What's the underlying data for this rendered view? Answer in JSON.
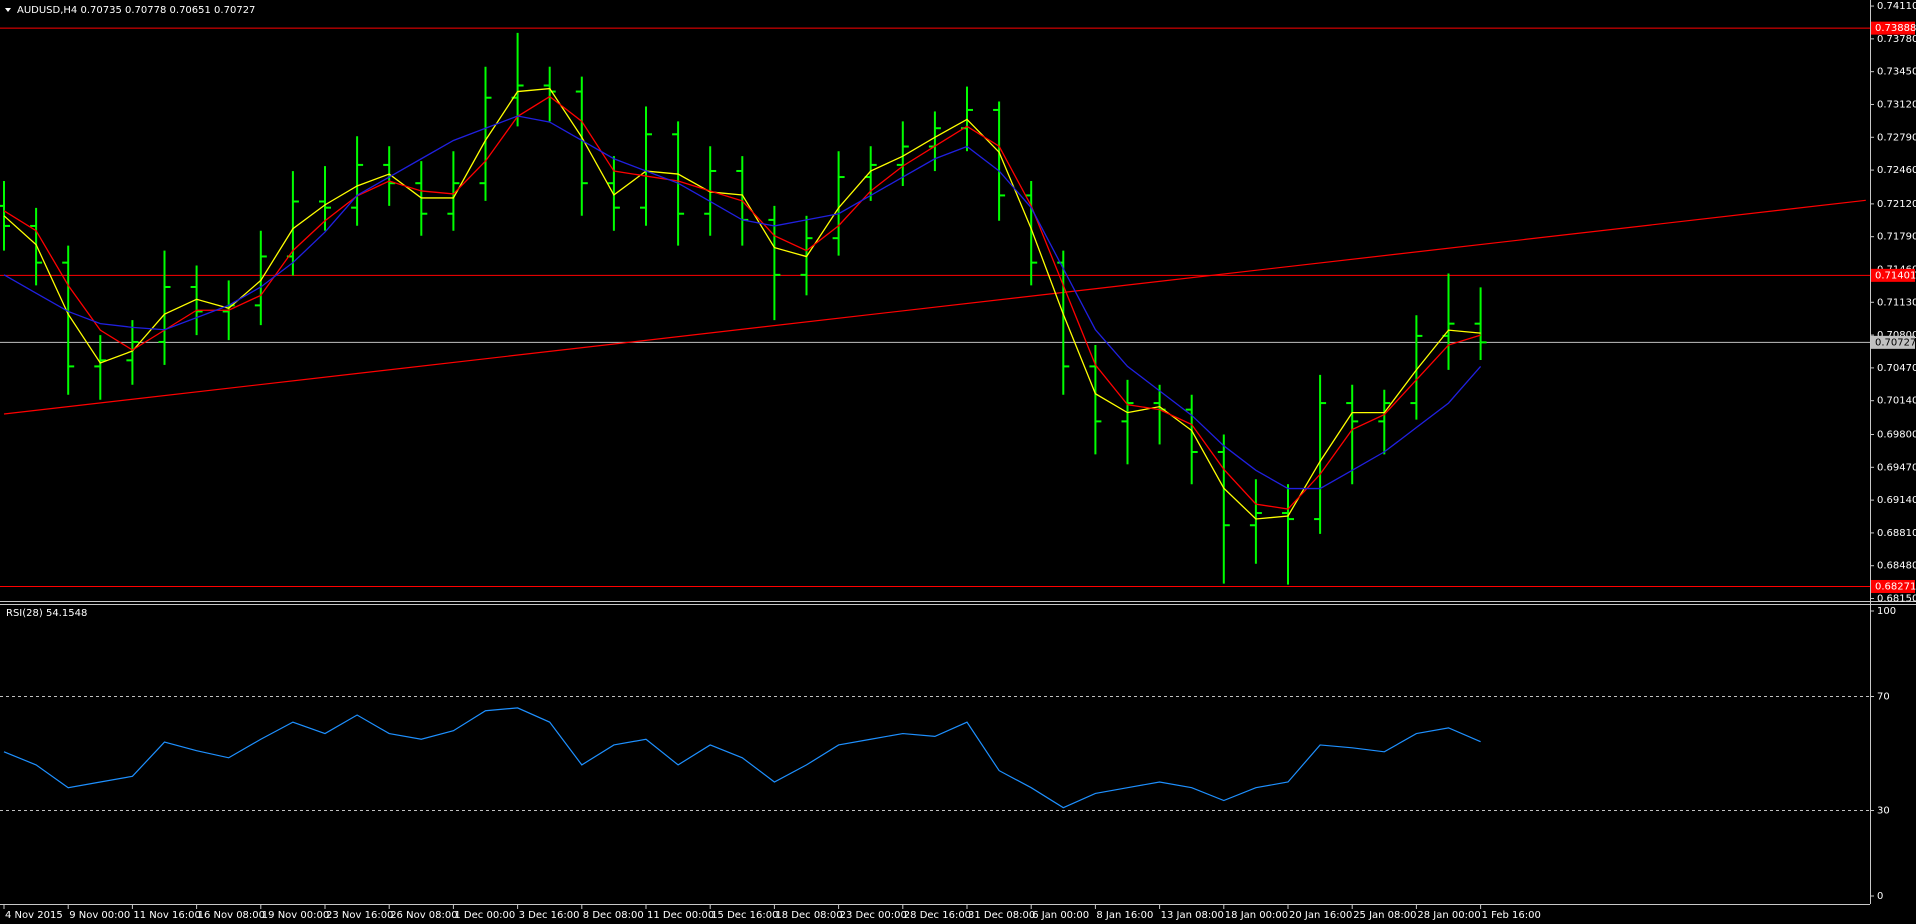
{
  "chart_data": [
    {
      "type": "ohlc",
      "title": "AUDUSD,H4  0.70735 0.70778 0.70651 0.70727",
      "categories": [
        "4 Nov 2015",
        null,
        "9 Nov 00:00",
        null,
        "11 Nov 16:00",
        null,
        "16 Nov 08:00",
        null,
        "19 Nov 00:00",
        null,
        "23 Nov 16:00",
        null,
        "26 Nov 08:00",
        null,
        "1 Dec 00:00",
        null,
        "3 Dec 16:00",
        null,
        "8 Dec 08:00",
        null,
        "11 Dec 00:00",
        null,
        "15 Dec 16:00",
        null,
        "18 Dec 08:00",
        null,
        "23 Dec 00:00",
        null,
        "28 Dec 16:00",
        null,
        "31 Dec 08:00",
        null,
        "6 Jan 00:00",
        null,
        "8 Jan 16:00",
        null,
        "13 Jan 08:00",
        null,
        "18 Jan 00:00",
        null,
        "20 Jan 16:00",
        null,
        "25 Jan 08:00",
        null,
        "28 Jan 00:00",
        null,
        "1 Feb 16:00"
      ],
      "open": [
        0.721,
        0.71898,
        0.71529,
        0.70485,
        0.70546,
        0.70731,
        0.71284,
        0.71038,
        0.71099,
        0.71591,
        0.72144,
        0.72082,
        0.72512,
        0.72328,
        0.72021,
        0.72328,
        0.73188,
        0.73311,
        0.7325,
        0.72328,
        0.72082,
        0.7282,
        0.72021,
        0.72451,
        0.71959,
        0.71406,
        0.71775,
        0.7239,
        0.72512,
        0.72697,
        0.72881,
        0.73065,
        0.72205,
        0.71529,
        0.70485,
        0.69932,
        0.70116,
        0.7005,
        0.69624,
        0.68887,
        0.6901,
        0.68949,
        0.70116,
        0.69932,
        0.70116,
        0.70792,
        0.70915
      ],
      "high": [
        0.7235,
        0.7208,
        0.717,
        0.708,
        0.7095,
        0.7165,
        0.715,
        0.7135,
        0.7185,
        0.7245,
        0.725,
        0.728,
        0.727,
        0.7255,
        0.7265,
        0.735,
        0.7384,
        0.735,
        0.734,
        0.726,
        0.731,
        0.7295,
        0.727,
        0.726,
        0.721,
        0.72,
        0.7265,
        0.727,
        0.7295,
        0.7305,
        0.733,
        0.7315,
        0.7235,
        0.7165,
        0.707,
        0.7035,
        0.703,
        0.702,
        0.698,
        0.6935,
        0.693,
        0.704,
        0.703,
        0.7025,
        0.71,
        0.7142,
        0.7128
      ],
      "low": [
        0.7165,
        0.713,
        0.702,
        0.7015,
        0.703,
        0.705,
        0.708,
        0.7075,
        0.709,
        0.714,
        0.7185,
        0.719,
        0.721,
        0.718,
        0.7185,
        0.7215,
        0.729,
        0.7295,
        0.72,
        0.7185,
        0.719,
        0.717,
        0.718,
        0.717,
        0.7095,
        0.712,
        0.716,
        0.7215,
        0.723,
        0.7245,
        0.7265,
        0.7195,
        0.713,
        0.702,
        0.696,
        0.695,
        0.697,
        0.693,
        0.683,
        0.685,
        0.6829,
        0.688,
        0.693,
        0.696,
        0.6995,
        0.7045,
        0.7055
      ],
      "close": [
        0.71898,
        0.71529,
        0.70485,
        0.70546,
        0.70731,
        0.71284,
        0.71038,
        0.71099,
        0.71591,
        0.72144,
        0.72082,
        0.72512,
        0.72328,
        0.72021,
        0.72328,
        0.73188,
        0.73311,
        0.7325,
        0.72328,
        0.72082,
        0.7282,
        0.72021,
        0.72451,
        0.71959,
        0.71406,
        0.71775,
        0.7239,
        0.72512,
        0.72697,
        0.72881,
        0.73065,
        0.72205,
        0.71529,
        0.70485,
        0.69932,
        0.70116,
        0.7005,
        0.69624,
        0.68887,
        0.6901,
        0.68949,
        0.70116,
        0.69932,
        0.70116,
        0.70792,
        0.70915,
        0.70727
      ],
      "color": "#00ff00",
      "lines": [
        {
          "color": "#ffff00",
          "values": [
            0.72,
            0.7171,
            0.7101,
            0.7052,
            0.7064,
            0.7101,
            0.7116,
            0.7107,
            0.7135,
            0.7187,
            0.7211,
            0.723,
            0.7242,
            0.7218,
            0.7218,
            0.7276,
            0.7325,
            0.7328,
            0.7279,
            0.7221,
            0.7245,
            0.7242,
            0.7224,
            0.7221,
            0.7168,
            0.7159,
            0.7208,
            0.7245,
            0.726,
            0.7279,
            0.7297,
            0.7264,
            0.7187,
            0.7101,
            0.7021,
            0.7002,
            0.7008,
            0.6984,
            0.6926,
            0.6895,
            0.6898,
            0.6953,
            0.7002,
            0.7002,
            0.7045,
            0.7085,
            0.7082
          ]
        },
        {
          "color": "#ff0000",
          "values": [
            0.7205,
            0.7185,
            0.713,
            0.7085,
            0.7065,
            0.7085,
            0.7105,
            0.7105,
            0.712,
            0.7165,
            0.7195,
            0.722,
            0.7235,
            0.7225,
            0.7222,
            0.7255,
            0.73,
            0.732,
            0.7295,
            0.7245,
            0.724,
            0.7235,
            0.7225,
            0.7215,
            0.718,
            0.7165,
            0.719,
            0.7225,
            0.725,
            0.727,
            0.729,
            0.727,
            0.721,
            0.713,
            0.705,
            0.701,
            0.7005,
            0.699,
            0.6945,
            0.691,
            0.6905,
            0.694,
            0.6985,
            0.7,
            0.7035,
            0.707,
            0.708
          ]
        },
        {
          "color": "#2020e0",
          "values": [
            0.71406,
            0.71222,
            0.71038,
            0.70915,
            0.70878,
            0.70854,
            0.70976,
            0.71099,
            0.71284,
            0.71529,
            0.71836,
            0.72205,
            0.7239,
            0.72574,
            0.72758,
            0.72881,
            0.73004,
            0.72943,
            0.72758,
            0.72574,
            0.72451,
            0.72328,
            0.72144,
            0.71959,
            0.71898,
            0.71959,
            0.72021,
            0.72205,
            0.7239,
            0.72574,
            0.72697,
            0.72451,
            0.72082,
            0.71468,
            0.70854,
            0.70485,
            0.70239,
            0.69993,
            0.69686,
            0.6944,
            0.69256,
            0.69256,
            0.6944,
            0.69625,
            0.6987,
            0.70116,
            0.70485
          ]
        }
      ],
      "trendline": {
        "x": [
          0,
          58
        ],
        "y": [
          0.70006,
          0.72156
        ],
        "color": "#ff0000"
      },
      "hlines": [
        {
          "value": 0.73888,
          "label": "0.73888",
          "color": "#ff0000"
        },
        {
          "value": 0.71401,
          "label": "0.71401",
          "color": "#ff0000"
        },
        {
          "value": 0.68271,
          "label": "0.68271",
          "color": "#ff0000"
        },
        {
          "value": 0.70727,
          "label": "0.70727",
          "color": "#c0c0c0"
        }
      ],
      "ylim": [
        0.68125,
        0.74171
      ],
      "yticks": [
        {
          "value": 0.7411,
          "label": "0.74110"
        },
        {
          "value": 0.7378,
          "label": "0.73780"
        },
        {
          "value": 0.7345,
          "label": "0.73450"
        },
        {
          "value": 0.7312,
          "label": "0.73120"
        },
        {
          "value": 0.7279,
          "label": "0.72790"
        },
        {
          "value": 0.7246,
          "label": "0.72460"
        },
        {
          "value": 0.7212,
          "label": "0.72120"
        },
        {
          "value": 0.7179,
          "label": "0.71790"
        },
        {
          "value": 0.7146,
          "label": "0.71460"
        },
        {
          "value": 0.7113,
          "label": "0.71130"
        },
        {
          "value": 0.708,
          "label": "0.70800"
        },
        {
          "value": 0.7047,
          "label": "0.70470"
        },
        {
          "value": 0.7014,
          "label": "0.70140"
        },
        {
          "value": 0.698,
          "label": "0.69800"
        },
        {
          "value": 0.6947,
          "label": "0.69470"
        },
        {
          "value": 0.6914,
          "label": "0.69140"
        },
        {
          "value": 0.6881,
          "label": "0.68810"
        },
        {
          "value": 0.6848,
          "label": "0.68480"
        },
        {
          "value": 0.6815,
          "label": "0.68150"
        }
      ]
    },
    {
      "type": "line",
      "title": "RSI(28) 54.1548",
      "color": "#1e90ff",
      "values": [
        50.6,
        46,
        38,
        40,
        42,
        54,
        51,
        48.5,
        55,
        61,
        57,
        63.5,
        57,
        55,
        58,
        65,
        66,
        61,
        46,
        53,
        55,
        46,
        53,
        48.5,
        40,
        46,
        53,
        55,
        57,
        56,
        61,
        44,
        38,
        31,
        36,
        38,
        40,
        38,
        33.5,
        38,
        40,
        53,
        52,
        50.6,
        57,
        59,
        54.1548
      ],
      "ylim": [
        0,
        100
      ],
      "yticks": [
        0,
        30,
        70,
        100
      ],
      "levels": [
        70,
        30
      ]
    }
  ]
}
